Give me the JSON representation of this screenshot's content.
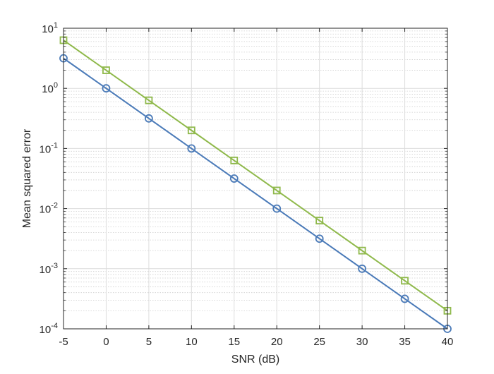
{
  "chart_data": {
    "type": "line",
    "title": "",
    "xlabel": "SNR (dB)",
    "ylabel": "Mean squared error",
    "x": [
      -5,
      0,
      5,
      10,
      15,
      20,
      25,
      30,
      35,
      40
    ],
    "xlim": [
      -5,
      40
    ],
    "ylim": [
      0.0001,
      10
    ],
    "yscale": "log",
    "grid": true,
    "minor_grid": true,
    "legend": "none",
    "x_ticks": [
      -5,
      0,
      5,
      10,
      15,
      20,
      25,
      30,
      35,
      40
    ],
    "x_tick_labels": [
      "-5",
      "0",
      "5",
      "10",
      "15",
      "20",
      "25",
      "30",
      "35",
      "40"
    ],
    "y_ticks": [
      {
        "value": 10,
        "base": "10",
        "exp": "1"
      },
      {
        "value": 1,
        "base": "10",
        "exp": "0"
      },
      {
        "value": 0.1,
        "base": "10",
        "exp": "-1"
      },
      {
        "value": 0.01,
        "base": "10",
        "exp": "-2"
      },
      {
        "value": 0.001,
        "base": "10",
        "exp": "-3"
      },
      {
        "value": 0.0001,
        "base": "10",
        "exp": "-4"
      }
    ],
    "series": [
      {
        "marker": "circle",
        "color": "#4a7ab8",
        "values": [
          3.16,
          1.0,
          0.316,
          0.1,
          0.0316,
          0.01,
          0.00316,
          0.001,
          0.000316,
          0.0001
        ]
      },
      {
        "marker": "square",
        "color": "#8fb94b",
        "values": [
          6.32,
          2.0,
          0.632,
          0.2,
          0.0632,
          0.02,
          0.00632,
          0.002,
          0.000632,
          0.0002
        ]
      }
    ]
  }
}
